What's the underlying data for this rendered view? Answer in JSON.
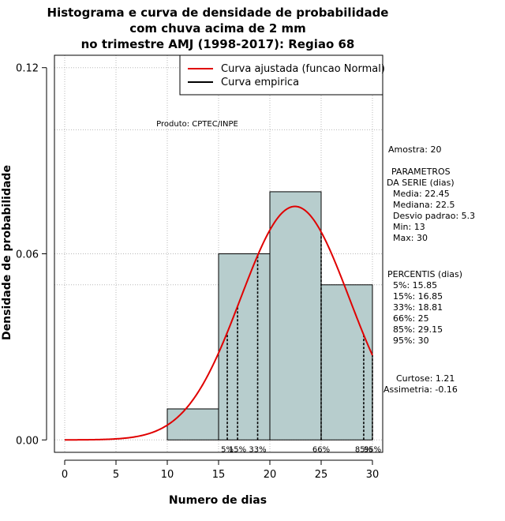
{
  "chart_data": {
    "type": "bar",
    "title_lines": [
      "Histograma e curva de densidade de probabilidade",
      "com chuva acima de 2 mm",
      "no trimestre AMJ (1998-2017): Regiao 68"
    ],
    "xlabel": "Numero de dias",
    "ylabel": "Densidade de probabilidade",
    "xlim": [
      -1,
      31
    ],
    "ylim": [
      -0.004,
      0.124
    ],
    "x_ticks": [
      0,
      5,
      10,
      15,
      20,
      25,
      30
    ],
    "y_ticks": [
      0.0,
      0.06,
      0.12
    ],
    "y_tick_labels": [
      "0.00",
      "0.06",
      "0.12"
    ],
    "grid_x": [
      0,
      5,
      10,
      15,
      20,
      25,
      30
    ],
    "grid_y": [
      0.0,
      0.05,
      0.06,
      0.1,
      0.12
    ],
    "histogram": {
      "bins": [
        {
          "from": 10,
          "to": 15,
          "density": 0.01
        },
        {
          "from": 15,
          "to": 20,
          "density": 0.06
        },
        {
          "from": 20,
          "to": 25,
          "density": 0.08
        },
        {
          "from": 25,
          "to": 30,
          "density": 0.05
        }
      ],
      "fill": "#b7cdcd"
    },
    "normal_curve": {
      "mean": 22.45,
      "sd": 5.3,
      "x_from": 0,
      "x_to": 30,
      "color": "#e00000"
    },
    "percentile_lines": [
      {
        "label": "5%",
        "x": 15.85
      },
      {
        "label": "15%",
        "x": 16.85
      },
      {
        "label": "33%",
        "x": 18.81
      },
      {
        "label": "66%",
        "x": 25
      },
      {
        "label": "85%",
        "x": 29.15
      },
      {
        "label": "95%",
        "x": 30
      }
    ],
    "legend": {
      "position": "top-right",
      "entries": [
        {
          "label": "Curva ajustada (funcao Normal)",
          "color": "#e00000"
        },
        {
          "label": "Curva empirica",
          "color": "#000000"
        }
      ]
    },
    "product_label": "Produto: CPTEC/INPE",
    "stats": {
      "amostra": "Amostra: 20",
      "parametros_title_1": "PARAMETROS",
      "parametros_title_2": "DA SERIE (dias)",
      "media": "Media: 22.45",
      "mediana": "Mediana: 22.5",
      "desvio": "Desvio padrao: 5.3",
      "min": "Min: 13",
      "max": "Max: 30",
      "percentis_title": "PERCENTIS (dias)",
      "p5": "5%: 15.85",
      "p15": "15%: 16.85",
      "p33": "33%: 18.81",
      "p66": "66%: 25",
      "p85": "85%: 29.15",
      "p95": "95%: 30",
      "curtose": "Curtose: 1.21",
      "assimetria": "Assimetria: -0.16"
    }
  }
}
